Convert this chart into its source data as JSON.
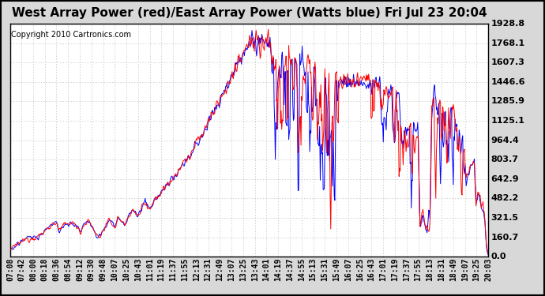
{
  "title": "West Array Power (red)/East Array Power (Watts blue) Fri Jul 23 20:04",
  "copyright": "Copyright 2010 Cartronics.com",
  "ylabel_values": [
    0.0,
    160.7,
    321.5,
    482.2,
    642.9,
    803.7,
    964.4,
    1125.1,
    1285.9,
    1446.6,
    1607.3,
    1768.1,
    1928.8
  ],
  "ymax": 1928.8,
  "ymin": 0.0,
  "x_labels": [
    "07:08",
    "07:42",
    "08:00",
    "08:18",
    "08:36",
    "08:54",
    "09:12",
    "09:30",
    "09:48",
    "10:07",
    "10:25",
    "10:43",
    "11:01",
    "11:19",
    "11:37",
    "11:55",
    "12:13",
    "12:31",
    "12:49",
    "13:07",
    "13:25",
    "13:43",
    "14:01",
    "14:19",
    "14:37",
    "14:55",
    "15:13",
    "15:31",
    "15:49",
    "16:07",
    "16:25",
    "16:43",
    "17:01",
    "17:19",
    "17:37",
    "17:55",
    "18:13",
    "18:31",
    "18:49",
    "19:07",
    "19:25",
    "20:03"
  ],
  "background_color": "#d8d8d8",
  "plot_bg_color": "#ffffff",
  "grid_color": "#bbbbbb",
  "red_color": "#ff0000",
  "blue_color": "#0000ff",
  "title_fontsize": 11,
  "tick_fontsize": 7,
  "copyright_fontsize": 7
}
